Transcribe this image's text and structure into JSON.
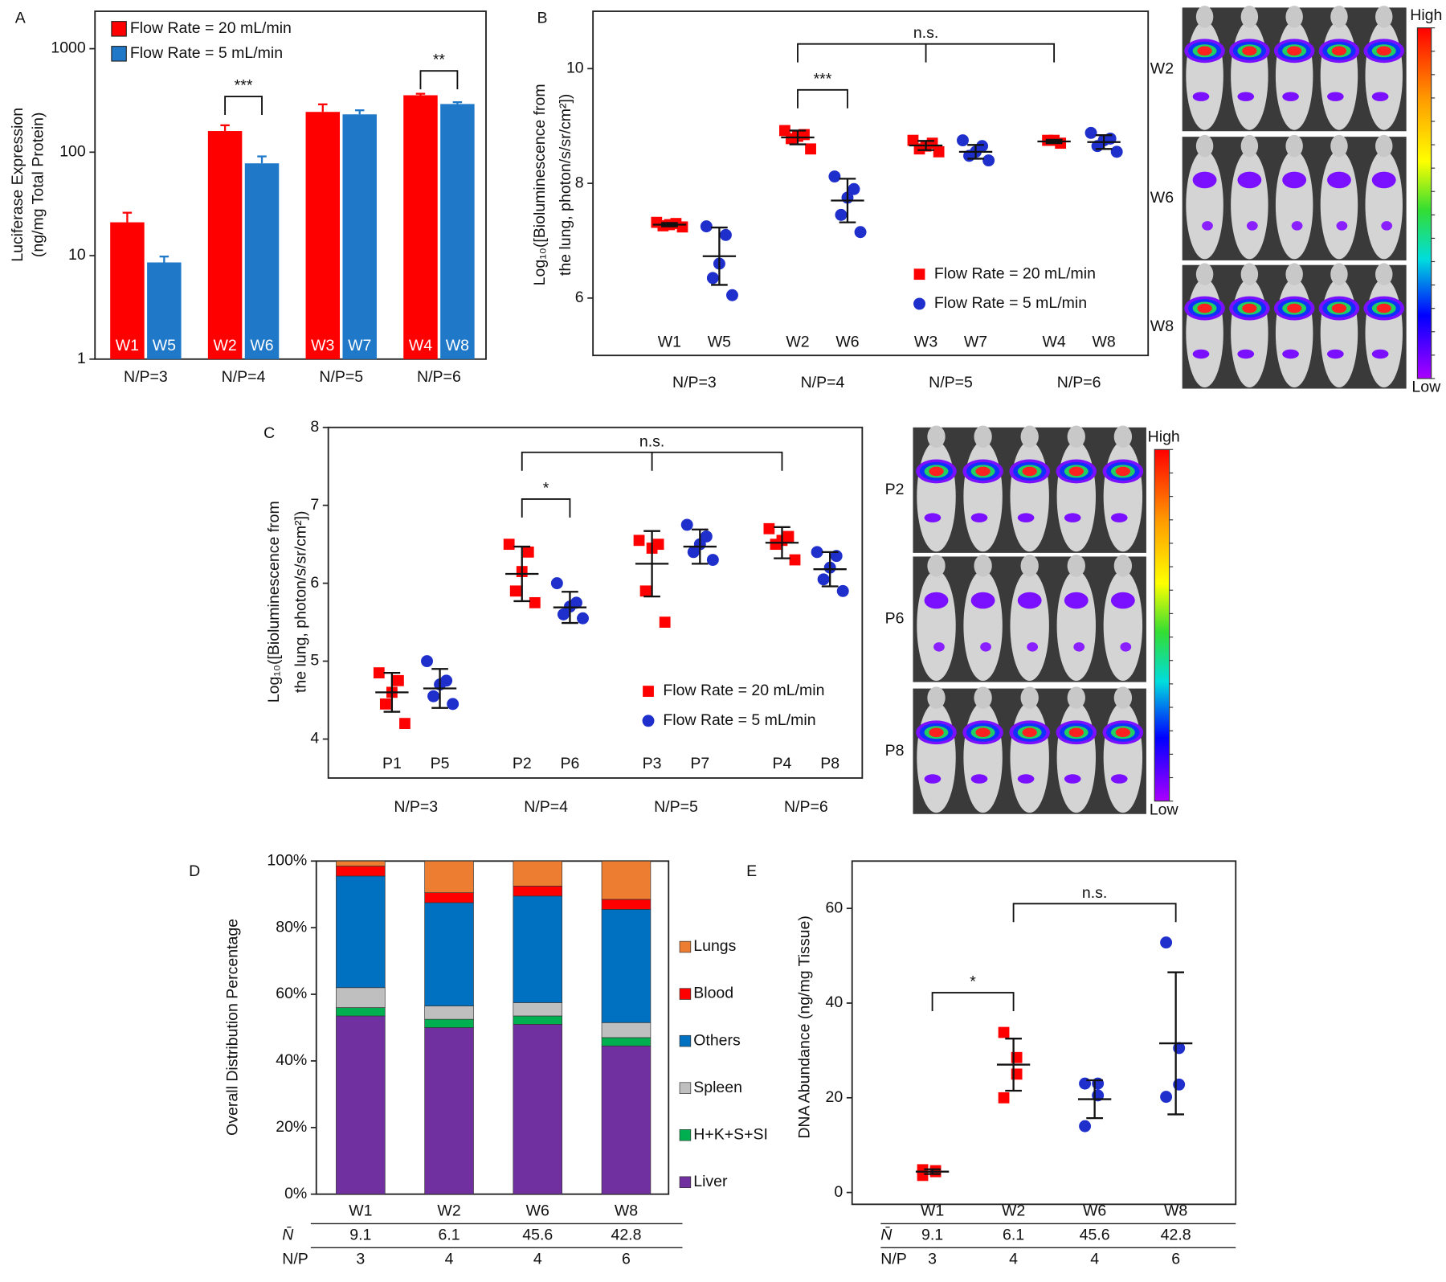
{
  "chart_data": [
    {
      "panel": "A",
      "type": "bar",
      "ylabel": [
        "Luciferase Expression",
        "(ng/mg Total Protein)"
      ],
      "log": true,
      "ylim": [
        1,
        2300
      ],
      "yticks": [
        1,
        10,
        100,
        1000
      ],
      "categories": [
        "N/P=3",
        "N/P=4",
        "N/P=5",
        "N/P=6"
      ],
      "series": [
        {
          "name": "Flow Rate = 20 mL/min",
          "color": "#ff0000",
          "values": [
            21,
            160,
            245,
            355
          ],
          "errors": [
            5,
            22,
            45,
            12
          ],
          "labels": [
            "W1",
            "W2",
            "W3",
            "W4"
          ]
        },
        {
          "name": "Flow Rate = 5 mL/min",
          "color": "#1f78c8",
          "values": [
            8.6,
            78,
            232,
            292
          ],
          "errors": [
            1.2,
            13,
            22,
            12
          ],
          "labels": [
            "W5",
            "W6",
            "W7",
            "W8"
          ]
        }
      ],
      "significance": [
        "***",
        "**"
      ]
    },
    {
      "panel": "B",
      "type": "dot",
      "ylabel": [
        "Log₁₀([Bioluminescence from",
        "the lung, photon/s/sr/cm²])"
      ],
      "ylim": [
        5,
        11
      ],
      "yticks": [
        6,
        8,
        10
      ],
      "categories": [
        "N/P=3",
        "N/P=4",
        "N/P=5",
        "N/P=6"
      ],
      "series": [
        {
          "name": "Flow Rate = 20 mL/min",
          "color": "#ff0000",
          "marker": "square"
        },
        {
          "name": "Flow Rate = 5 mL/min",
          "color": "#1f2fcc",
          "marker": "circle"
        }
      ],
      "groups": [
        {
          "label": "W1",
          "color": "#ff0000",
          "marker": "square",
          "points": [
            7.32,
            7.3,
            7.28,
            7.26,
            7.24
          ],
          "mean": 7.28,
          "sd": 0.03
        },
        {
          "label": "W5",
          "color": "#1f2fcc",
          "marker": "circle",
          "points": [
            7.25,
            7.1,
            6.6,
            6.35,
            6.05
          ],
          "mean": 6.73,
          "sd": 0.5
        },
        {
          "label": "W2",
          "color": "#ff0000",
          "marker": "square",
          "points": [
            8.92,
            8.85,
            8.82,
            8.78,
            8.6
          ],
          "mean": 8.8,
          "sd": 0.12
        },
        {
          "label": "W6",
          "color": "#1f2fcc",
          "marker": "circle",
          "points": [
            8.12,
            7.9,
            7.75,
            7.45,
            7.15
          ],
          "mean": 7.7,
          "sd": 0.38
        },
        {
          "label": "W3",
          "color": "#ff0000",
          "marker": "square",
          "points": [
            8.75,
            8.7,
            8.65,
            8.6,
            8.55
          ],
          "mean": 8.66,
          "sd": 0.08
        },
        {
          "label": "W7",
          "color": "#1f2fcc",
          "marker": "circle",
          "points": [
            8.75,
            8.65,
            8.55,
            8.48,
            8.4
          ],
          "mean": 8.55,
          "sd": 0.12
        },
        {
          "label": "W4",
          "color": "#ff0000",
          "marker": "square",
          "points": [
            8.75,
            8.75,
            8.7
          ],
          "mean": 8.73,
          "sd": 0.03
        },
        {
          "label": "W8",
          "color": "#1f2fcc",
          "marker": "circle",
          "points": [
            8.88,
            8.78,
            8.75,
            8.65,
            8.55
          ],
          "mean": 8.72,
          "sd": 0.12
        }
      ],
      "significance": [
        "***",
        "n.s."
      ],
      "image_rows": [
        "W2",
        "W6",
        "W8"
      ],
      "scale_labels": [
        "High",
        "Low"
      ]
    },
    {
      "panel": "C",
      "type": "dot",
      "ylabel": [
        "Log₁₀([Bioluminescence from",
        "the lung, photon/s/sr/cm²])"
      ],
      "ylim": [
        3.5,
        8
      ],
      "yticks": [
        4,
        5,
        6,
        7,
        8
      ],
      "categories": [
        "N/P=3",
        "N/P=4",
        "N/P=5",
        "N/P=6"
      ],
      "series": [
        {
          "name": "Flow Rate = 20 mL/min",
          "color": "#ff0000",
          "marker": "square"
        },
        {
          "name": "Flow Rate = 5 mL/min",
          "color": "#1f2fcc",
          "marker": "circle"
        }
      ],
      "groups": [
        {
          "label": "P1",
          "color": "#ff0000",
          "marker": "square",
          "points": [
            4.85,
            4.75,
            4.6,
            4.45,
            4.2
          ],
          "mean": 4.6,
          "sd": 0.25
        },
        {
          "label": "P5",
          "color": "#1f2fcc",
          "marker": "circle",
          "points": [
            5.0,
            4.75,
            4.7,
            4.55,
            4.45
          ],
          "mean": 4.65,
          "sd": 0.25
        },
        {
          "label": "P2",
          "color": "#ff0000",
          "marker": "square",
          "points": [
            6.5,
            6.4,
            6.15,
            5.9,
            5.75
          ],
          "mean": 6.12,
          "sd": 0.35
        },
        {
          "label": "P6",
          "color": "#1f2fcc",
          "marker": "circle",
          "points": [
            6.0,
            5.75,
            5.7,
            5.6,
            5.55
          ],
          "mean": 5.69,
          "sd": 0.2
        },
        {
          "label": "P3",
          "color": "#ff0000",
          "marker": "square",
          "points": [
            6.55,
            6.5,
            6.45,
            5.9,
            5.5
          ],
          "mean": 6.25,
          "sd": 0.42
        },
        {
          "label": "P7",
          "color": "#1f2fcc",
          "marker": "circle",
          "points": [
            6.75,
            6.6,
            6.5,
            6.4,
            6.3
          ],
          "mean": 6.47,
          "sd": 0.22
        },
        {
          "label": "P4",
          "color": "#ff0000",
          "marker": "square",
          "points": [
            6.7,
            6.6,
            6.55,
            6.5,
            6.3
          ],
          "mean": 6.52,
          "sd": 0.2
        },
        {
          "label": "P8",
          "color": "#1f2fcc",
          "marker": "circle",
          "points": [
            6.4,
            6.35,
            6.2,
            6.05,
            5.9
          ],
          "mean": 6.18,
          "sd": 0.22
        }
      ],
      "significance": [
        "*",
        "n.s."
      ],
      "image_rows": [
        "P2",
        "P6",
        "P8"
      ],
      "scale_labels": [
        "High",
        "Low"
      ]
    },
    {
      "panel": "D",
      "type": "stacked_bar",
      "ylabel": "Overall Distribution Percentage",
      "ylim": [
        0,
        100
      ],
      "yticks": [
        {
          "value": 0,
          "label": "0%"
        },
        {
          "value": 20,
          "label": "20%"
        },
        {
          "value": 40,
          "label": "40%"
        },
        {
          "value": 60,
          "label": "60%"
        },
        {
          "value": 80,
          "label": "80%"
        },
        {
          "value": 100,
          "label": "100%"
        }
      ],
      "categories": [
        "W1",
        "W2",
        "W6",
        "W8"
      ],
      "category_colors": [
        "#e31a1c",
        "#e31a1c",
        "#2e3192",
        "#2e3192"
      ],
      "series": [
        {
          "name": "Liver",
          "color": "#7030a0",
          "values": [
            53.5,
            50,
            51,
            44.5
          ]
        },
        {
          "name": "H+K+S+SI",
          "color": "#00b050",
          "values": [
            2.5,
            2.5,
            2.5,
            2.5
          ]
        },
        {
          "name": "Spleen",
          "color": "#bfbfbf",
          "values": [
            6,
            4,
            4,
            4.5
          ]
        },
        {
          "name": "Others",
          "color": "#0070c0",
          "values": [
            33.5,
            31,
            32,
            34
          ]
        },
        {
          "name": "Blood",
          "color": "#ff0000",
          "values": [
            3,
            3,
            3,
            3
          ]
        },
        {
          "name": "Lungs",
          "color": "#ed7d31",
          "values": [
            1.5,
            9.5,
            7.5,
            11.5
          ]
        }
      ],
      "table": {
        "row_labels": [
          "N̄",
          "N/P"
        ],
        "rows": [
          [
            9.1,
            6.1,
            45.6,
            42.8
          ],
          [
            3,
            4,
            4,
            6
          ]
        ]
      }
    },
    {
      "panel": "E",
      "type": "dot",
      "ylabel": [
        "DNA Abundance (ng/mg Tissue)"
      ],
      "ylim": [
        -2.5,
        70
      ],
      "yticks": [
        0,
        20,
        40,
        60
      ],
      "category_colors": [
        "#e31a1c",
        "#e31a1c",
        "#2e3192",
        "#2e3192"
      ],
      "groups": [
        {
          "label": "W1",
          "color": "#ff0000",
          "marker": "square",
          "points": [
            4.8,
            4.6,
            4.4,
            3.6
          ],
          "mean": 4.4,
          "sd": 0.5
        },
        {
          "label": "W2",
          "color": "#ff0000",
          "marker": "square",
          "points": [
            33.8,
            28.5,
            25,
            20
          ],
          "mean": 27,
          "sd": 5.5
        },
        {
          "label": "W6",
          "color": "#1f2fcc",
          "marker": "circle",
          "points": [
            23,
            23,
            20.5,
            14
          ],
          "mean": 19.7,
          "sd": 4
        },
        {
          "label": "W8",
          "color": "#1f2fcc",
          "marker": "circle",
          "points": [
            52.8,
            30.5,
            22.8,
            20.2
          ],
          "mean": 31.5,
          "sd": 15
        }
      ],
      "significance": [
        "*",
        "n.s."
      ],
      "table": {
        "row_labels": [
          "N̄",
          "N/P"
        ],
        "rows": [
          [
            9.1,
            6.1,
            45.6,
            42.8
          ],
          [
            3,
            4,
            4,
            6
          ]
        ]
      }
    }
  ]
}
